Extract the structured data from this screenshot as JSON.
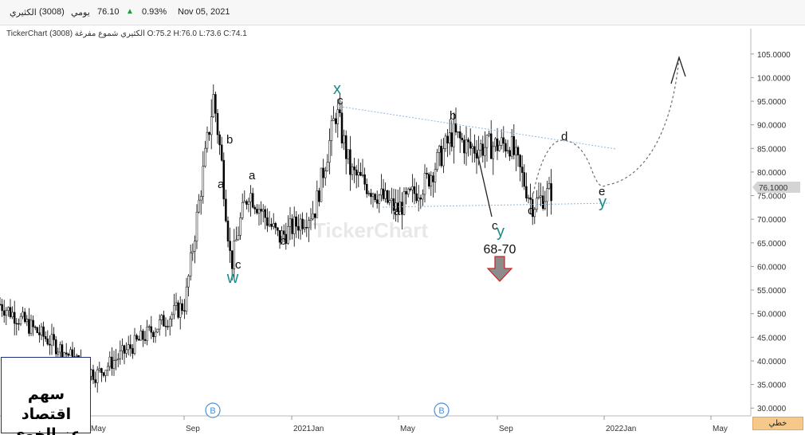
{
  "header": {
    "stock_name": "الكثيري",
    "symbol": "(3008)",
    "timeframe": "يومي",
    "price": "76.10",
    "change_arrow": "▲",
    "change_pct": "0.93%",
    "date": "Nov 05, 2021"
  },
  "chart_info": "TickerChart الكثيري شموع مفرغة (3008) O:75.2 H:76.0 L:73.6 C:74.1",
  "watermark": "TickerChart",
  "brand": {
    "line1": "سهم اقتصاد",
    "line2": "عز الخوي"
  },
  "scale_button": "خطي",
  "colors": {
    "teal": "#1a8a8a",
    "channel": "#8fb7e0",
    "arrow_fill": "#8c8c8c",
    "arrow_border": "#cc2222",
    "price_tag": "#d4d4d4"
  },
  "chart_data": {
    "type": "candlestick",
    "y_axis": {
      "min": 27,
      "max": 108,
      "side": "right",
      "ticks": [
        "30.0000",
        "35.0000",
        "40.0000",
        "45.0000",
        "50.0000",
        "55.0000",
        "60.0000",
        "65.0000",
        "70.0000",
        "75.0000",
        "80.0000",
        "85.0000",
        "90.0000",
        "95.0000",
        "100.0000",
        "105.0000"
      ],
      "tick_values": [
        30,
        35,
        40,
        45,
        50,
        55,
        60,
        65,
        70,
        75,
        80,
        85,
        90,
        95,
        100,
        105
      ]
    },
    "x_axis": {
      "labels": [
        "May",
        "Sep",
        "2021Jan",
        "May",
        "Sep",
        "2022Jan",
        "May"
      ]
    },
    "last_price": "76.1000",
    "approx_price_path": [
      {
        "x": "start",
        "close": 52
      },
      {
        "x": "May 2020",
        "close": 37
      },
      {
        "x": "Sep 2020",
        "close": 96
      },
      {
        "x": "Oct 2020",
        "close": 60
      },
      {
        "x": "Dec 2020",
        "close": 68
      },
      {
        "x": "Feb 2021",
        "close": 93
      },
      {
        "x": "May 2021",
        "close": 72
      },
      {
        "x": "Jul 2021",
        "close": 89
      },
      {
        "x": "Oct 2021",
        "close": 73
      },
      {
        "x": "Nov 2021",
        "close": 76.1
      }
    ],
    "wave_labels": {
      "small": [
        "b",
        "a",
        "c",
        "a",
        "b",
        "c",
        "a",
        "b",
        "c",
        "c",
        "d",
        "e"
      ],
      "big": [
        "w",
        "x",
        "y",
        "y"
      ]
    },
    "target_label": "68-70",
    "event_markers": [
      "B",
      "B"
    ]
  }
}
